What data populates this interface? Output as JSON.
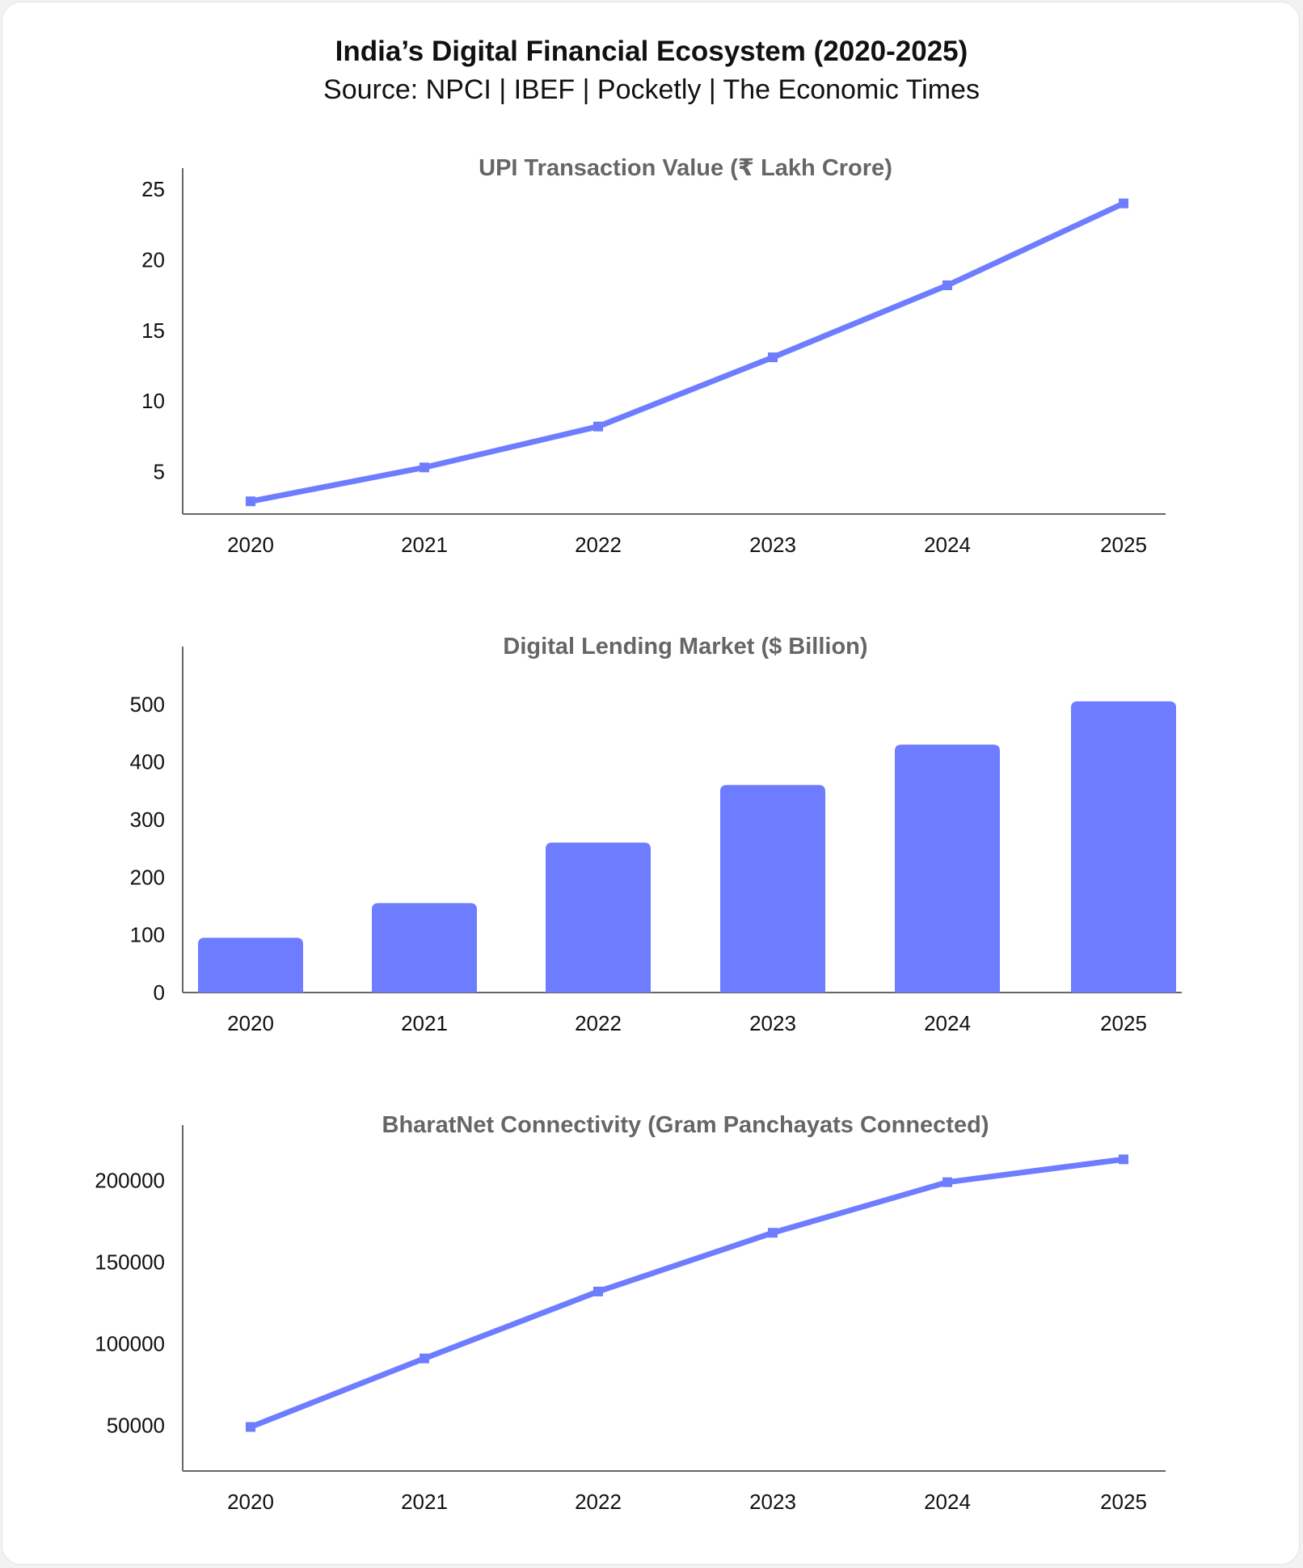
{
  "title": "India’s Digital Financial Ecosystem (2020-2025)",
  "subtitle": "Source: NPCI | IBEF | Pocketly | The Economic Times",
  "colors": {
    "series": "#6e7dff",
    "axis": "#666666",
    "subtitle_text": "#666666"
  },
  "chart_data": [
    {
      "type": "line",
      "title": "UPI Transaction Value (₹ Lakh Crore)",
      "categories": [
        "2020",
        "2021",
        "2022",
        "2023",
        "2024",
        "2025"
      ],
      "values": [
        2.9,
        5.3,
        8.2,
        13.1,
        18.2,
        24.0
      ],
      "yticks": [
        5,
        10,
        15,
        20,
        25
      ],
      "ylim": [
        2,
        26.5
      ],
      "xlabel": "",
      "ylabel": "",
      "grid": false
    },
    {
      "type": "bar",
      "title": "Digital Lending Market ($ Billion)",
      "categories": [
        "2020",
        "2021",
        "2022",
        "2023",
        "2024",
        "2025"
      ],
      "values": [
        95,
        155,
        260,
        360,
        430,
        505
      ],
      "yticks": [
        0,
        100,
        200,
        300,
        400,
        500
      ],
      "ylim": [
        0,
        600
      ],
      "xlabel": "",
      "ylabel": "",
      "grid": false
    },
    {
      "type": "line",
      "title": "BharatNet Connectivity (Gram Panchayats Connected)",
      "categories": [
        "2020",
        "2021",
        "2022",
        "2023",
        "2024",
        "2025"
      ],
      "values": [
        49000,
        91000,
        132000,
        168000,
        199000,
        213000
      ],
      "yticks": [
        50000,
        100000,
        150000,
        200000
      ],
      "ylim": [
        22000,
        234000
      ],
      "xlabel": "",
      "ylabel": "",
      "grid": false
    }
  ]
}
